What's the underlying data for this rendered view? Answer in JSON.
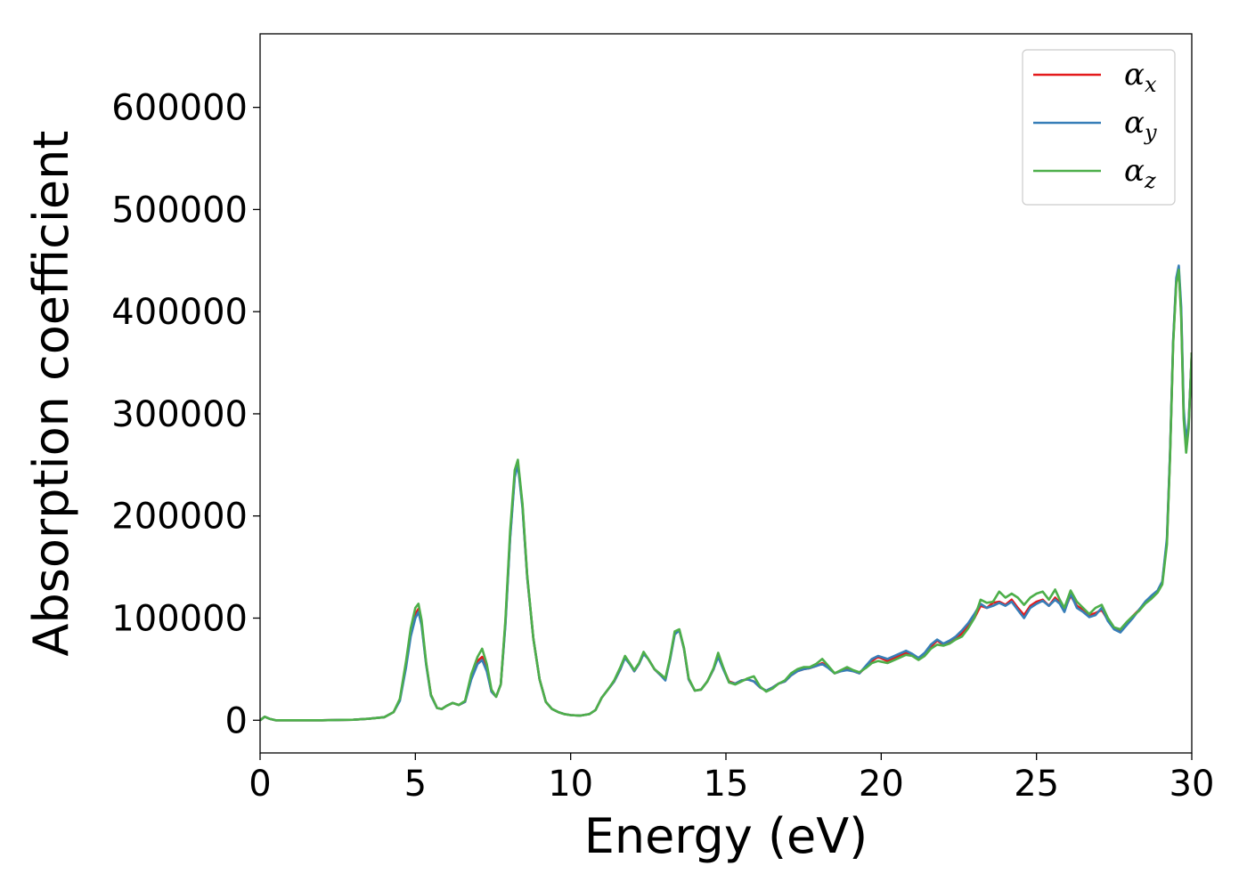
{
  "chart_data": {
    "type": "line",
    "xlabel": "Energy (eV)",
    "ylabel": "Absorption coefficient",
    "xlim": [
      0,
      30
    ],
    "ylim": [
      -32000,
      672000
    ],
    "x_ticks": [
      0,
      5,
      10,
      15,
      20,
      25,
      30
    ],
    "y_ticks": [
      0,
      100000,
      200000,
      300000,
      400000,
      500000,
      600000
    ],
    "grid": false,
    "legend_position": "top-right",
    "series": [
      {
        "name": "α",
        "subscript": "x",
        "color": "#e41a1c",
        "x": [
          0,
          0.15,
          0.3,
          0.5,
          1,
          2,
          3,
          3.5,
          4,
          4.3,
          4.5,
          4.7,
          4.85,
          5.0,
          5.1,
          5.2,
          5.35,
          5.5,
          5.7,
          5.85,
          6.0,
          6.2,
          6.4,
          6.6,
          6.8,
          7.0,
          7.15,
          7.3,
          7.45,
          7.6,
          7.75,
          7.9,
          8.05,
          8.2,
          8.3,
          8.45,
          8.6,
          8.8,
          9.0,
          9.2,
          9.4,
          9.6,
          9.8,
          10.0,
          10.3,
          10.6,
          10.8,
          11.0,
          11.2,
          11.4,
          11.6,
          11.75,
          11.9,
          12.05,
          12.2,
          12.35,
          12.5,
          12.7,
          12.9,
          13.05,
          13.2,
          13.35,
          13.5,
          13.65,
          13.8,
          14.0,
          14.2,
          14.4,
          14.6,
          14.75,
          14.9,
          15.1,
          15.3,
          15.5,
          15.7,
          15.9,
          16.1,
          16.3,
          16.5,
          16.7,
          16.9,
          17.1,
          17.3,
          17.5,
          17.7,
          17.9,
          18.1,
          18.3,
          18.5,
          18.7,
          18.9,
          19.1,
          19.3,
          19.5,
          19.7,
          19.9,
          20.2,
          20.5,
          20.8,
          21.0,
          21.2,
          21.4,
          21.6,
          21.8,
          22.0,
          22.2,
          22.4,
          22.6,
          22.8,
          23.0,
          23.2,
          23.4,
          23.6,
          23.8,
          24.0,
          24.2,
          24.4,
          24.6,
          24.8,
          25.0,
          25.2,
          25.4,
          25.6,
          25.75,
          25.9,
          26.1,
          26.3,
          26.5,
          26.7,
          26.9,
          27.1,
          27.3,
          27.5,
          27.7,
          27.9,
          28.1,
          28.3,
          28.5,
          28.7,
          28.9,
          29.05,
          29.2,
          29.3,
          29.4,
          29.5,
          29.58,
          29.66,
          29.74,
          29.82,
          29.9,
          30.0
        ],
        "values": [
          0,
          3500,
          1500,
          0,
          0,
          0,
          500,
          1500,
          3000,
          8000,
          20000,
          55000,
          85000,
          104000,
          109000,
          95000,
          55000,
          25000,
          12000,
          11000,
          14000,
          17000,
          15000,
          18000,
          42000,
          58000,
          62000,
          50000,
          28000,
          23000,
          35000,
          95000,
          180000,
          240000,
          252000,
          210000,
          140000,
          80000,
          40000,
          18000,
          11000,
          8000,
          6000,
          5000,
          4500,
          6000,
          10000,
          22000,
          30000,
          38000,
          50000,
          62000,
          56000,
          48000,
          55000,
          66000,
          60000,
          50000,
          44000,
          40000,
          60000,
          85000,
          88000,
          70000,
          40000,
          29000,
          30000,
          38000,
          50000,
          64000,
          52000,
          38000,
          36000,
          39000,
          40000,
          38000,
          32000,
          29000,
          32000,
          36000,
          38000,
          44000,
          48000,
          50000,
          51000,
          53000,
          56000,
          52000,
          46000,
          48000,
          50000,
          48000,
          46000,
          52000,
          58000,
          62000,
          58000,
          62000,
          66000,
          64000,
          60000,
          65000,
          72000,
          78000,
          74000,
          76000,
          80000,
          85000,
          92000,
          100000,
          112000,
          110000,
          115000,
          116000,
          113000,
          118000,
          110000,
          103000,
          112000,
          116000,
          118000,
          112000,
          120000,
          115000,
          108000,
          122000,
          112000,
          108000,
          103000,
          105000,
          108000,
          98000,
          90000,
          88000,
          95000,
          102000,
          108000,
          115000,
          120000,
          126000,
          135000,
          175000,
          260000,
          370000,
          430000,
          440000,
          400000,
          300000,
          270000,
          290000,
          360000
        ]
      },
      {
        "name": "α",
        "subscript": "y",
        "color": "#377eb8",
        "x": [
          0,
          0.15,
          0.3,
          0.5,
          1,
          2,
          3,
          3.5,
          4,
          4.3,
          4.5,
          4.7,
          4.85,
          5.0,
          5.1,
          5.2,
          5.35,
          5.5,
          5.7,
          5.85,
          6.0,
          6.2,
          6.4,
          6.6,
          6.8,
          7.0,
          7.15,
          7.3,
          7.45,
          7.6,
          7.75,
          7.9,
          8.05,
          8.2,
          8.3,
          8.45,
          8.6,
          8.8,
          9.0,
          9.2,
          9.4,
          9.6,
          9.8,
          10.0,
          10.3,
          10.6,
          10.8,
          11.0,
          11.2,
          11.4,
          11.6,
          11.75,
          11.9,
          12.05,
          12.2,
          12.35,
          12.5,
          12.7,
          12.9,
          13.05,
          13.2,
          13.35,
          13.5,
          13.65,
          13.8,
          14.0,
          14.2,
          14.4,
          14.6,
          14.75,
          14.9,
          15.1,
          15.3,
          15.5,
          15.7,
          15.9,
          16.1,
          16.3,
          16.5,
          16.7,
          16.9,
          17.1,
          17.3,
          17.5,
          17.7,
          17.9,
          18.1,
          18.3,
          18.5,
          18.7,
          18.9,
          19.1,
          19.3,
          19.5,
          19.7,
          19.9,
          20.2,
          20.5,
          20.8,
          21.0,
          21.2,
          21.4,
          21.6,
          21.8,
          22.0,
          22.2,
          22.4,
          22.6,
          22.8,
          23.0,
          23.2,
          23.4,
          23.6,
          23.8,
          24.0,
          24.2,
          24.4,
          24.6,
          24.8,
          25.0,
          25.2,
          25.4,
          25.6,
          25.75,
          25.9,
          26.1,
          26.3,
          26.5,
          26.7,
          26.9,
          27.1,
          27.3,
          27.5,
          27.7,
          27.9,
          28.1,
          28.3,
          28.5,
          28.7,
          28.9,
          29.05,
          29.2,
          29.3,
          29.4,
          29.5,
          29.58,
          29.66,
          29.74,
          29.82,
          29.9,
          30.0
        ],
        "values": [
          0,
          3500,
          1500,
          0,
          0,
          0,
          500,
          1500,
          3000,
          8000,
          19000,
          52000,
          82000,
          100000,
          106000,
          93000,
          54000,
          24000,
          12000,
          11000,
          14000,
          17000,
          15000,
          18000,
          40000,
          55000,
          59000,
          48000,
          28000,
          23000,
          35000,
          93000,
          178000,
          238000,
          250000,
          208000,
          140000,
          80000,
          40000,
          18000,
          11000,
          8000,
          6000,
          5000,
          4500,
          6000,
          10000,
          22000,
          30000,
          38000,
          50000,
          61000,
          55000,
          48000,
          55000,
          65000,
          60000,
          50000,
          44000,
          39000,
          59000,
          84000,
          88000,
          70000,
          40000,
          29000,
          30000,
          38000,
          50000,
          62000,
          51000,
          37000,
          36000,
          39000,
          40000,
          38000,
          32000,
          29000,
          32000,
          36000,
          38000,
          44000,
          48000,
          50000,
          51000,
          53000,
          55000,
          51000,
          46000,
          48000,
          49000,
          48000,
          46000,
          53000,
          60000,
          63000,
          60000,
          64000,
          68000,
          65000,
          61000,
          66000,
          74000,
          79000,
          75000,
          78000,
          82000,
          88000,
          95000,
          104000,
          114000,
          110000,
          112000,
          115000,
          112000,
          116000,
          108000,
          100000,
          110000,
          114000,
          117000,
          112000,
          118000,
          114000,
          106000,
          124000,
          110000,
          106000,
          101000,
          103000,
          110000,
          97000,
          89000,
          86000,
          93000,
          100000,
          108000,
          116000,
          122000,
          127000,
          136000,
          178000,
          262000,
          372000,
          433000,
          445000,
          405000,
          305000,
          272000,
          292000,
          358000
        ]
      },
      {
        "name": "α",
        "subscript": "z",
        "color": "#4daf4a",
        "x": [
          0,
          0.15,
          0.3,
          0.5,
          1,
          2,
          3,
          3.5,
          4,
          4.3,
          4.5,
          4.7,
          4.85,
          5.0,
          5.1,
          5.2,
          5.35,
          5.5,
          5.7,
          5.85,
          6.0,
          6.2,
          6.4,
          6.6,
          6.8,
          7.0,
          7.15,
          7.3,
          7.45,
          7.6,
          7.75,
          7.9,
          8.05,
          8.2,
          8.3,
          8.45,
          8.6,
          8.8,
          9.0,
          9.2,
          9.4,
          9.6,
          9.8,
          10.0,
          10.3,
          10.6,
          10.8,
          11.0,
          11.2,
          11.4,
          11.6,
          11.75,
          11.9,
          12.05,
          12.2,
          12.35,
          12.5,
          12.7,
          12.9,
          13.05,
          13.2,
          13.35,
          13.5,
          13.65,
          13.8,
          14.0,
          14.2,
          14.4,
          14.6,
          14.75,
          14.9,
          15.1,
          15.3,
          15.5,
          15.7,
          15.9,
          16.1,
          16.3,
          16.5,
          16.7,
          16.9,
          17.1,
          17.3,
          17.5,
          17.7,
          17.9,
          18.1,
          18.3,
          18.5,
          18.7,
          18.9,
          19.1,
          19.3,
          19.5,
          19.7,
          19.9,
          20.2,
          20.5,
          20.8,
          21.0,
          21.2,
          21.4,
          21.6,
          21.8,
          22.0,
          22.2,
          22.4,
          22.6,
          22.8,
          23.0,
          23.2,
          23.4,
          23.6,
          23.8,
          24.0,
          24.2,
          24.4,
          24.6,
          24.8,
          25.0,
          25.2,
          25.4,
          25.6,
          25.75,
          25.9,
          26.1,
          26.3,
          26.5,
          26.7,
          26.9,
          27.1,
          27.3,
          27.5,
          27.7,
          27.9,
          28.1,
          28.3,
          28.5,
          28.7,
          28.9,
          29.05,
          29.2,
          29.3,
          29.4,
          29.5,
          29.58,
          29.66,
          29.74,
          29.82,
          29.9,
          30.0
        ],
        "values": [
          0,
          3500,
          1500,
          0,
          0,
          0,
          500,
          1500,
          3000,
          8000,
          21000,
          58000,
          90000,
          110000,
          114000,
          98000,
          56000,
          25000,
          12000,
          11000,
          14000,
          17000,
          15000,
          19000,
          45000,
          62000,
          70000,
          55000,
          30000,
          23000,
          35000,
          98000,
          185000,
          245000,
          255000,
          212000,
          142000,
          80000,
          40000,
          18000,
          11000,
          8000,
          6000,
          5000,
          4500,
          6000,
          10000,
          22000,
          30000,
          39000,
          52000,
          63000,
          56000,
          49000,
          56000,
          67000,
          60000,
          50000,
          45000,
          41000,
          61000,
          87000,
          89000,
          71000,
          41000,
          29000,
          30000,
          38000,
          51000,
          66000,
          53000,
          37000,
          35000,
          38000,
          41000,
          43000,
          33000,
          28000,
          31000,
          36000,
          39000,
          46000,
          50000,
          52000,
          52000,
          55000,
          60000,
          53000,
          46000,
          49000,
          52000,
          49000,
          47000,
          51000,
          56000,
          58000,
          56000,
          60000,
          64000,
          63000,
          59000,
          63000,
          70000,
          74000,
          73000,
          75000,
          79000,
          82000,
          90000,
          100000,
          118000,
          115000,
          116000,
          126000,
          120000,
          124000,
          120000,
          113000,
          120000,
          124000,
          126000,
          118000,
          128000,
          118000,
          110000,
          127000,
          116000,
          110000,
          104000,
          110000,
          113000,
          100000,
          91000,
          89000,
          96000,
          102000,
          107000,
          114000,
          119000,
          125000,
          133000,
          172000,
          257000,
          368000,
          428000,
          441000,
          395000,
          295000,
          262000,
          286000,
          360000
        ]
      }
    ]
  }
}
